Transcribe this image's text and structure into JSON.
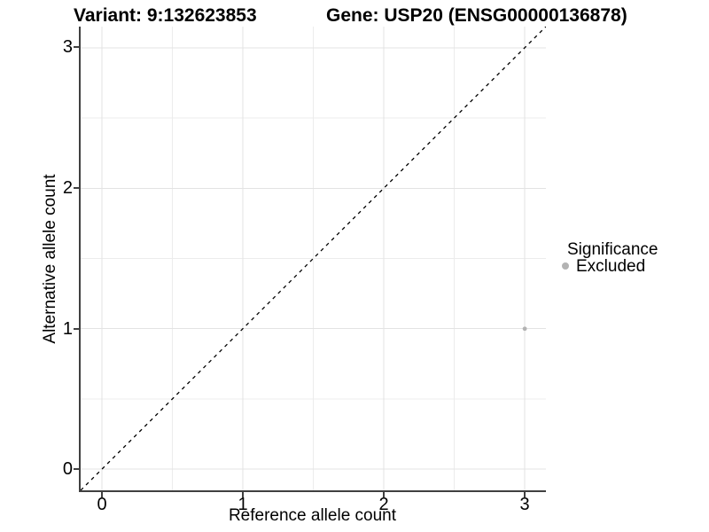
{
  "header": {
    "title_left": "Variant: 9:132623853",
    "title_right": "Gene: USP20 (ENSG00000136878)"
  },
  "chart_data": {
    "type": "scatter",
    "title_left": "Variant: 9:132623853",
    "title_right": "Gene: USP20 (ENSG00000136878)",
    "xlabel": "Reference allele count",
    "ylabel": "Alternative allele count",
    "xlim": [
      -0.15,
      3.15
    ],
    "ylim": [
      -0.15,
      3.15
    ],
    "xticks": [
      0,
      1,
      2,
      3
    ],
    "yticks": [
      0,
      1,
      2,
      3
    ],
    "x_tick_labels": [
      "0",
      "1",
      "2",
      "3"
    ],
    "y_tick_labels": [
      "0",
      "1",
      "2",
      "3"
    ],
    "minor_ticks": [
      0.5,
      1.5,
      2.5
    ],
    "grid": true,
    "background": "#ffffff",
    "reference_line": {
      "type": "abline",
      "intercept": 0,
      "slope": 1,
      "style": "dashed",
      "color": "#000000"
    },
    "series": [
      {
        "name": "Excluded",
        "color": "#b3b3b3",
        "points": [
          {
            "x": 3,
            "y": 1
          }
        ]
      }
    ],
    "legend": {
      "title": "Significance",
      "position": "right",
      "items": [
        {
          "label": "Excluded",
          "color": "#b3b3b3"
        }
      ]
    }
  }
}
